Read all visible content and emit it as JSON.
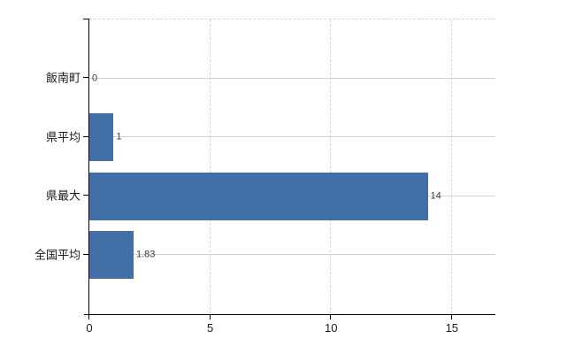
{
  "chart_data": {
    "type": "bar",
    "orientation": "horizontal",
    "title": "",
    "xlabel": "",
    "ylabel": "",
    "categories": [
      "飯南町",
      "県平均",
      "県最大",
      "全国平均"
    ],
    "values": [
      0,
      1,
      14,
      1.83
    ],
    "data_labels": [
      "0",
      "1",
      "14",
      "1.83"
    ],
    "xticks": [
      0,
      5,
      10,
      15
    ],
    "xtick_labels": [
      "0",
      "5",
      "10",
      "15"
    ],
    "xlim": [
      0,
      16.8
    ],
    "grid": true,
    "legend": false,
    "colors": {
      "bar": "#426fa8",
      "horizontal_gridline": "#ccd6c8",
      "vertical_gridline": "#d8d8d8",
      "axis": "#000000",
      "tick_label": "#1a1a1a",
      "data_label": "#3d3d3d",
      "background": "#ffffff"
    }
  }
}
